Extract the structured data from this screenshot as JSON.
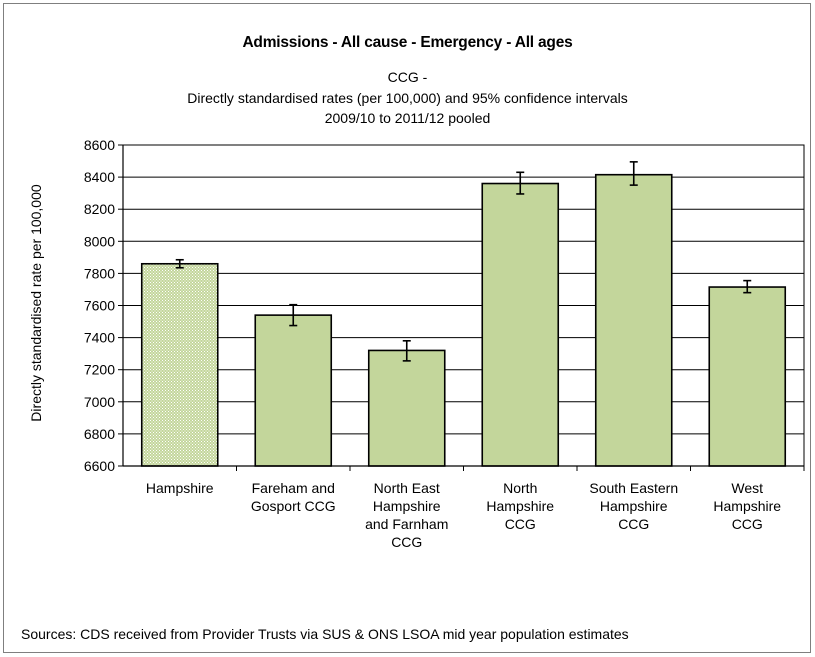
{
  "chart_data": {
    "type": "bar",
    "title": "Admissions - All cause - Emergency - All ages",
    "subtitle": [
      "CCG -",
      "Directly standardised rates (per 100,000) and 95% confidence intervals",
      "2009/10 to 2011/12 pooled"
    ],
    "xlabel": "",
    "ylabel": "Directly standardised rate per 100,000",
    "ylim": [
      6600,
      8600
    ],
    "yticks": [
      6600,
      6800,
      7000,
      7200,
      7400,
      7600,
      7800,
      8000,
      8200,
      8400,
      8600
    ],
    "grid": true,
    "categories": [
      "Hampshire",
      "Fareham and Gosport CCG",
      "North East Hampshire and Farnham CCG",
      "North Hampshire CCG",
      "South Eastern Hampshire CCG",
      "West Hampshire CCG"
    ],
    "category_lines": [
      [
        "Hampshire"
      ],
      [
        "Fareham and",
        "Gosport CCG"
      ],
      [
        "North East",
        "Hampshire",
        "and Farnham",
        "CCG"
      ],
      [
        "North",
        "Hampshire",
        "CCG"
      ],
      [
        "South Eastern",
        "Hampshire",
        "CCG"
      ],
      [
        "West",
        "Hampshire",
        "CCG"
      ]
    ],
    "values": [
      7860,
      7540,
      7320,
      8360,
      8415,
      7715
    ],
    "ci_lower": [
      7835,
      7475,
      7255,
      8295,
      8350,
      7680
    ],
    "ci_upper": [
      7885,
      7605,
      7380,
      8430,
      8495,
      7755
    ],
    "colors": {
      "bar": "#c3d69b",
      "benchmark_bar": "#c3d69b",
      "benchmark_pattern": "#ffffff",
      "grid": "#000000",
      "border": "#000000"
    }
  },
  "source": "Sources: CDS received from Provider Trusts via SUS & ONS LSOA mid year population  estimates"
}
